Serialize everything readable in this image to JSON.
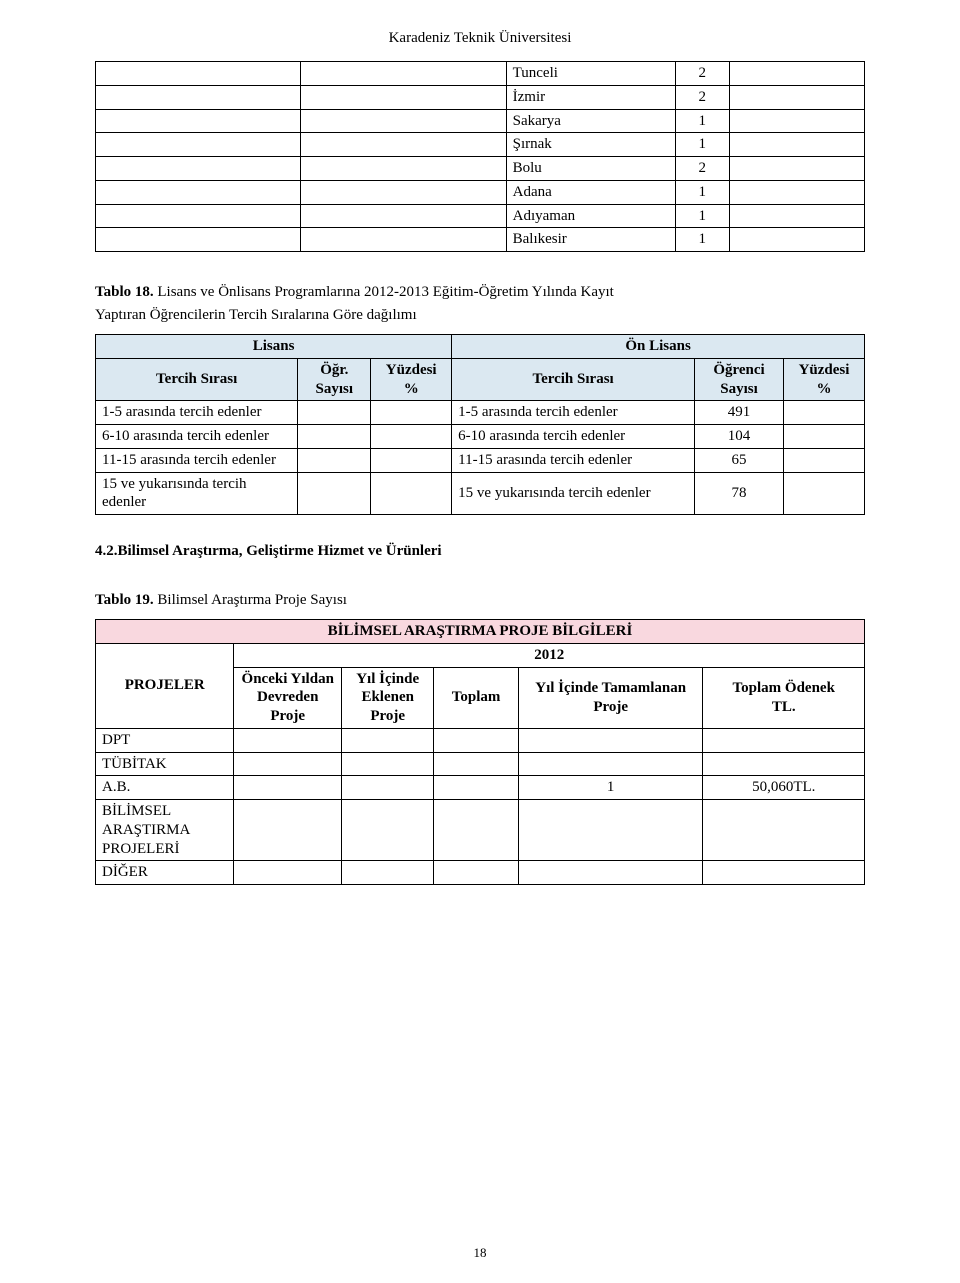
{
  "header": "Karadeniz Teknik Üniversitesi",
  "table1": {
    "rows": [
      [
        "",
        "",
        "Tunceli",
        "2",
        ""
      ],
      [
        "",
        "",
        "İzmir",
        "2",
        ""
      ],
      [
        "",
        "",
        "Sakarya",
        "1",
        ""
      ],
      [
        "",
        "",
        "Şırnak",
        "1",
        ""
      ],
      [
        "",
        "",
        "Bolu",
        "2",
        ""
      ],
      [
        "",
        "",
        "Adana",
        "1",
        ""
      ],
      [
        "",
        "",
        "Adıyaman",
        "1",
        ""
      ],
      [
        "",
        "",
        "Balıkesir",
        "1",
        ""
      ]
    ]
  },
  "caption18_b": "Tablo 18.",
  "caption18_rest": " Lisans ve Önlisans Programlarına 2012-2013 Eğitim-Öğretim Yılında Kayıt",
  "caption18_line2": "Yaptıran Öğrencilerin Tercih Sıralarına Göre dağılımı",
  "t2": {
    "top_left": "Lisans",
    "top_right": "Ön Lisans",
    "h_left_1": "Tercih Sırası",
    "h_left_2": "Öğr. Sayısı",
    "h_left_3": "Yüzdesi %",
    "h_right_1": "Tercih Sırası",
    "h_right_2": "Öğrenci Sayısı",
    "h_right_3": "Yüzdesi %",
    "rows": [
      [
        "1-5 arasında tercih edenler",
        "",
        "",
        "1-5 arasında tercih edenler",
        "491",
        ""
      ],
      [
        "6-10 arasında tercih edenler",
        "",
        "",
        "6-10 arasında tercih edenler",
        "104",
        ""
      ],
      [
        "11-15 arasında tercih edenler",
        "",
        "",
        "11-15 arasında tercih edenler",
        "65",
        ""
      ],
      [
        "15 ve yukarısında tercih edenler",
        "",
        "",
        "15 ve yukarısında tercih edenler",
        "78",
        ""
      ]
    ]
  },
  "section42": "4.2.Bilimsel Araştırma, Geliştirme Hizmet ve Ürünleri",
  "caption19_b": "Tablo 19.",
  "caption19_rest": " Bilimsel Araştırma Proje Sayısı",
  "t3": {
    "title": "BİLİMSEL ARAŞTIRMA PROJE BİLGİLERİ",
    "year": "2012",
    "h1": "PROJELER",
    "h2": "Önceki Yıldan Devreden Proje",
    "h3": "Yıl İçinde Eklenen Proje",
    "h4": "Toplam",
    "h5": "Yıl İçinde Tamamlanan Proje",
    "h6_a": "Toplam Ödenek",
    "h6_b": "TL.",
    "rows": [
      [
        "DPT",
        "",
        "",
        "",
        "",
        ""
      ],
      [
        "TÜBİTAK",
        "",
        "",
        "",
        "",
        ""
      ],
      [
        "A.B.",
        "",
        "",
        "",
        "1",
        "50,060TL."
      ],
      [
        "BİLİMSEL ARAŞTIRMA PROJELERİ",
        "",
        "",
        "",
        "",
        ""
      ],
      [
        "DİĞER",
        "",
        "",
        "",
        "",
        ""
      ]
    ]
  },
  "page_num": "18"
}
